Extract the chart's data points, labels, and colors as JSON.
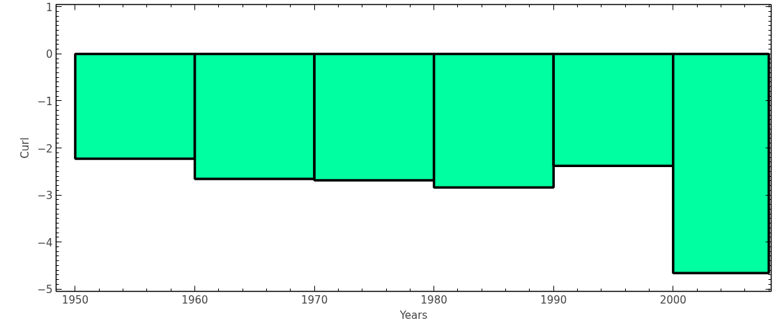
{
  "chart_data": {
    "type": "histogram",
    "xlabel": "Years",
    "ylabel": "Curl",
    "bins": [
      1950,
      1960,
      1970,
      1980,
      1990,
      2000,
      2008
    ],
    "values": [
      -2.23,
      -2.66,
      -2.69,
      -2.84,
      -2.38,
      -4.66
    ],
    "color": "#00ffa0",
    "xlim": [
      1948.4,
      2008.2
    ],
    "ylim": [
      -5.05,
      1.05
    ],
    "xticks": [
      1950,
      1960,
      1970,
      1980,
      1990,
      2000
    ],
    "yticks": [
      -5,
      -4,
      -3,
      -2,
      -1,
      0,
      1
    ],
    "grid": false
  }
}
